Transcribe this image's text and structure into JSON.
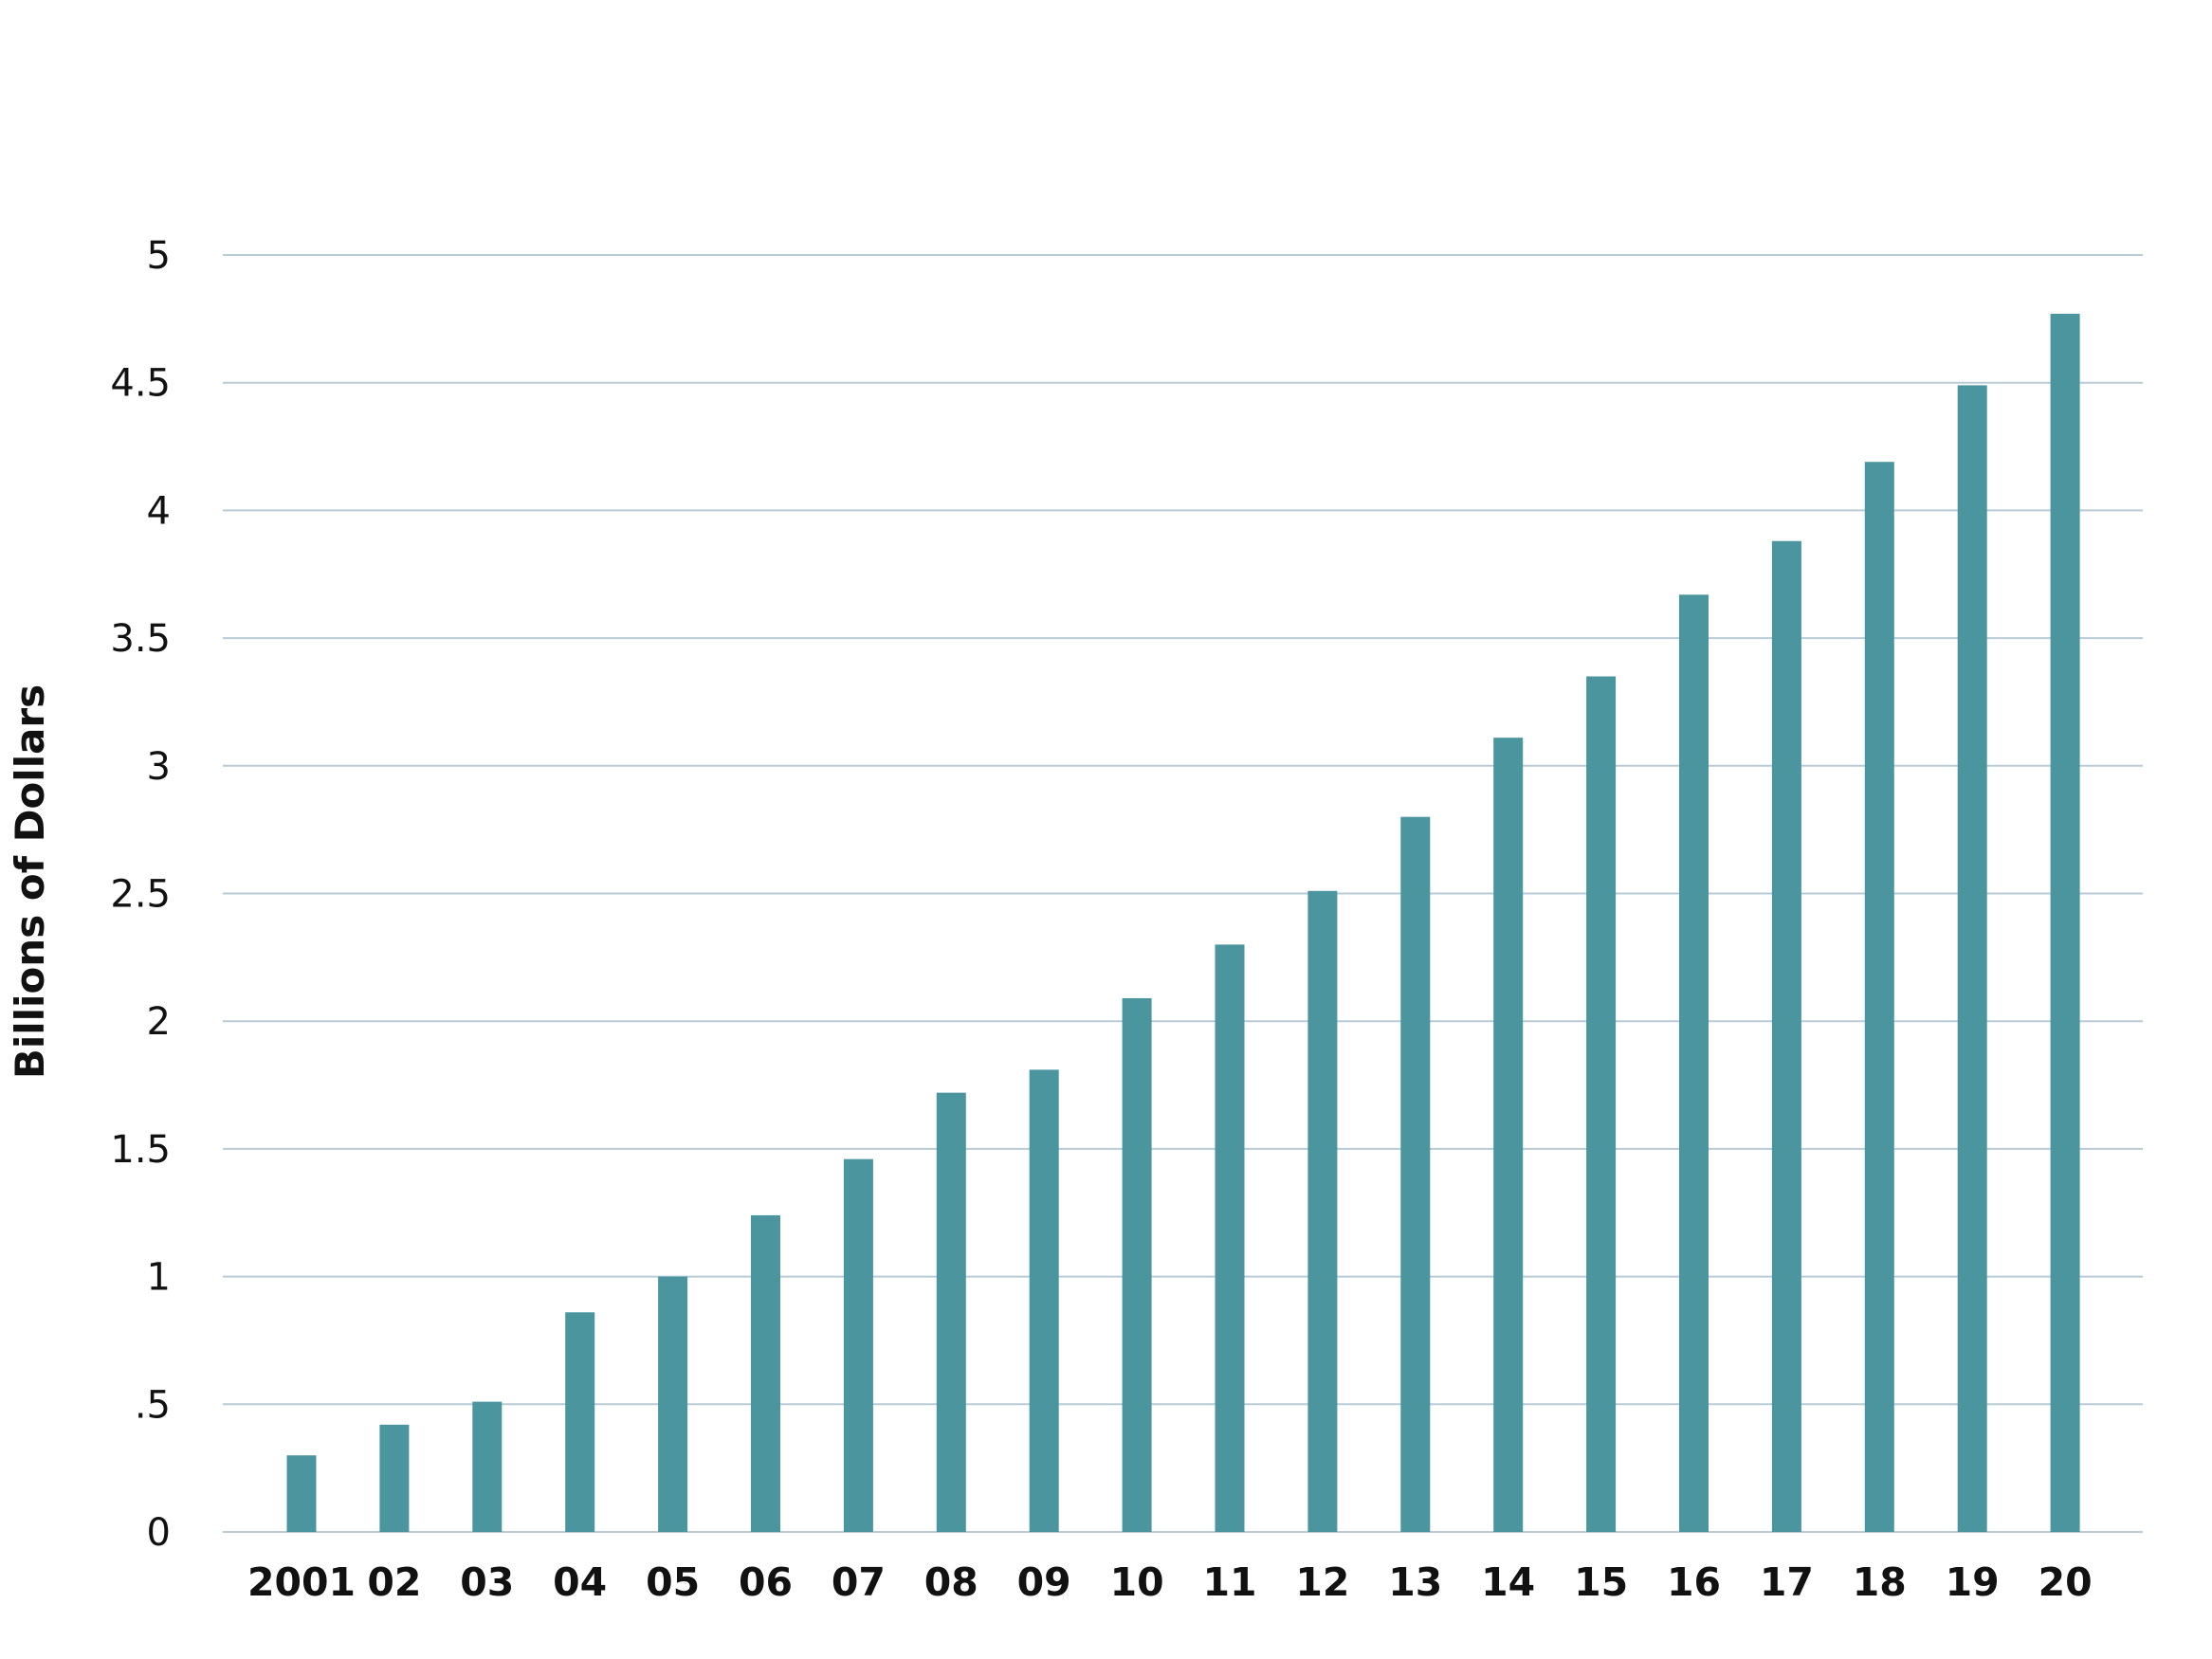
{
  "chart_data": {
    "type": "bar",
    "title": "",
    "xlabel": "",
    "ylabel": "Billions of Dollars",
    "categories": [
      "2001",
      "02",
      "03",
      "04",
      "05",
      "06",
      "07",
      "08",
      "09",
      "10",
      "11",
      "12",
      "13",
      "14",
      "15",
      "16",
      "17",
      "18",
      "19",
      "20"
    ],
    "values": [
      0.3,
      0.42,
      0.51,
      0.86,
      1.0,
      1.24,
      1.46,
      1.72,
      1.81,
      2.09,
      2.3,
      2.51,
      2.8,
      3.11,
      3.35,
      3.67,
      3.88,
      4.19,
      4.49,
      4.77
    ],
    "ylim": [
      0,
      5
    ],
    "y_ticks": [
      0,
      0.5,
      1,
      1.5,
      2,
      2.5,
      3,
      3.5,
      4,
      4.5,
      5
    ],
    "y_tick_labels": [
      "0",
      ".5",
      "1",
      "1.5",
      "2",
      "2.5",
      "3",
      "3.5",
      "4",
      "4.5",
      "5"
    ],
    "grid": true,
    "legend": "none",
    "colors": {
      "bar": "#4a959e",
      "grid": "#b9ccd6",
      "text": "#111111"
    }
  }
}
